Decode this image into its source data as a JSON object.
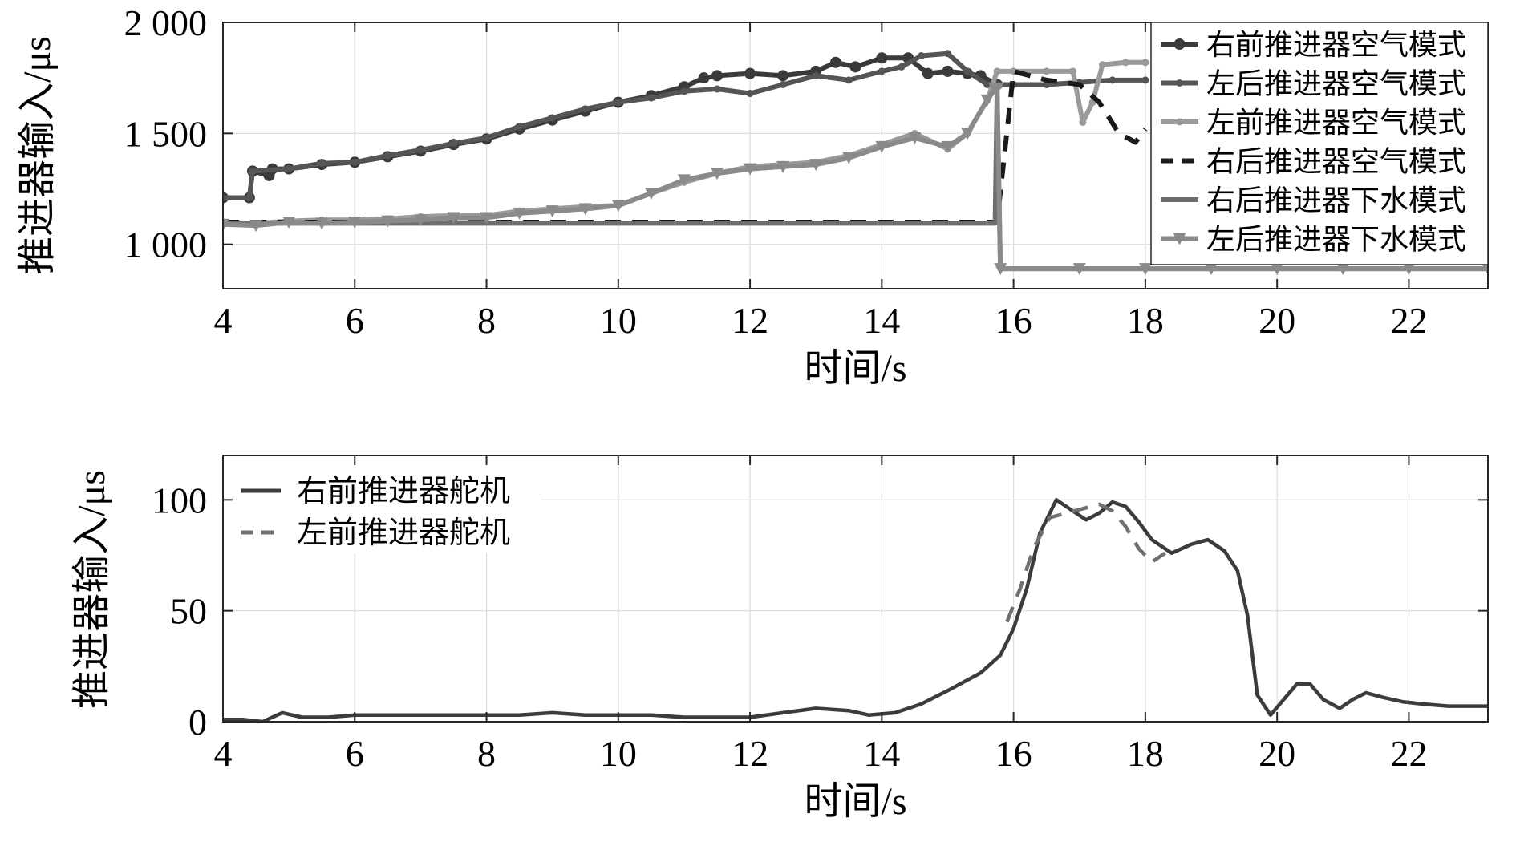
{
  "chart_data": [
    {
      "type": "line",
      "xlabel": "时间/s",
      "ylabel": "推进器输入/μs",
      "xlim": [
        4,
        23.2
      ],
      "ylim": [
        800,
        2000
      ],
      "xticks": [
        4,
        6,
        8,
        10,
        12,
        14,
        16,
        18,
        20,
        22
      ],
      "yticks": [
        1000,
        1500,
        2000
      ],
      "ytick_labels": [
        "1 000",
        "1 500",
        "2 000"
      ],
      "grid": true,
      "legend_position": "top-right",
      "series": [
        {
          "name": "右前推进器空气模式",
          "color": "#3a3a3a",
          "marker": "circle",
          "x": [
            4,
            4.4,
            4.45,
            4.7,
            4.75,
            5,
            5.5,
            6,
            6.5,
            7,
            7.5,
            8,
            8.5,
            9,
            9.5,
            10,
            10.5,
            11,
            11.3,
            11.5,
            12,
            12.5,
            13,
            13.3,
            13.6,
            14,
            14.4,
            14.7,
            15,
            15.3,
            15.5,
            15.75
          ],
          "y": [
            1210,
            1210,
            1330,
            1310,
            1340,
            1340,
            1360,
            1370,
            1395,
            1420,
            1450,
            1475,
            1520,
            1560,
            1600,
            1640,
            1670,
            1710,
            1750,
            1760,
            1770,
            1760,
            1780,
            1820,
            1800,
            1840,
            1840,
            1770,
            1780,
            1770,
            1760,
            1720
          ]
        },
        {
          "name": "左后推进器空气模式",
          "color": "#555555",
          "marker": "dot",
          "x": [
            4,
            4.4,
            4.45,
            5,
            5.5,
            6,
            6.5,
            7,
            7.5,
            8,
            8.5,
            9,
            9.5,
            10,
            10.5,
            11,
            11.5,
            12,
            12.5,
            13,
            13.5,
            14,
            14.3,
            14.6,
            15,
            15.3,
            15.6,
            15.75,
            16,
            16.5,
            17,
            17.5,
            18
          ],
          "y": [
            1210,
            1210,
            1330,
            1340,
            1365,
            1370,
            1400,
            1425,
            1455,
            1480,
            1530,
            1570,
            1610,
            1640,
            1660,
            1690,
            1700,
            1680,
            1720,
            1760,
            1740,
            1780,
            1800,
            1850,
            1860,
            1780,
            1720,
            1720,
            1720,
            1720,
            1730,
            1740,
            1740
          ]
        },
        {
          "name": "左前推进器空气模式",
          "color": "#9a9a9a",
          "marker": "dot",
          "x": [
            4,
            4.5,
            5,
            5.5,
            6,
            6.5,
            7,
            7.5,
            8,
            8.5,
            9,
            9.5,
            10,
            10.5,
            11,
            11.5,
            12,
            12.5,
            13,
            13.5,
            14,
            14.5,
            15,
            15.3,
            15.6,
            15.75,
            16,
            16.5,
            16.9,
            17.05,
            17.2,
            17.35,
            17.7,
            18
          ],
          "y": [
            1100,
            1095,
            1105,
            1110,
            1110,
            1115,
            1125,
            1130,
            1130,
            1150,
            1160,
            1170,
            1175,
            1230,
            1280,
            1320,
            1350,
            1360,
            1370,
            1400,
            1450,
            1500,
            1430,
            1500,
            1650,
            1780,
            1780,
            1780,
            1780,
            1550,
            1640,
            1810,
            1820,
            1820
          ]
        },
        {
          "name": "右后推进器空气模式",
          "color": "#1a1a1a",
          "dashed": true,
          "x": [
            4,
            5,
            6,
            7,
            8,
            9,
            10,
            11,
            12,
            13,
            14,
            15,
            15.75,
            16,
            16.5,
            17,
            17.3,
            17.6,
            17.85,
            18
          ],
          "y": [
            1100,
            1100,
            1100,
            1100,
            1100,
            1100,
            1100,
            1100,
            1100,
            1100,
            1100,
            1100,
            1100,
            1780,
            1740,
            1720,
            1640,
            1500,
            1460,
            1520
          ]
        },
        {
          "name": "右后推进器下水模式",
          "color": "#6e6e6e",
          "x": [
            4,
            6,
            8,
            10,
            12,
            14,
            15.5,
            15.72,
            15.75,
            15.8,
            18,
            20,
            22,
            23.2
          ],
          "y": [
            1095,
            1095,
            1095,
            1095,
            1095,
            1095,
            1095,
            1095,
            1700,
            890,
            890,
            890,
            890,
            890
          ]
        },
        {
          "name": "左后推进器下水模式",
          "color": "#8a8a8a",
          "marker": "triangle-down",
          "x": [
            4,
            4.5,
            5,
            5.5,
            6,
            6.5,
            7,
            7.5,
            8,
            8.5,
            9,
            9.5,
            10,
            10.5,
            11,
            11.5,
            12,
            12.5,
            13,
            13.5,
            14,
            14.5,
            15,
            15.3,
            15.6,
            15.72,
            15.75,
            15.8,
            17,
            18,
            19,
            20,
            21,
            22,
            23.2
          ],
          "y": [
            1090,
            1085,
            1100,
            1095,
            1100,
            1105,
            1110,
            1120,
            1120,
            1140,
            1150,
            1160,
            1175,
            1230,
            1290,
            1320,
            1340,
            1350,
            1360,
            1390,
            1440,
            1480,
            1440,
            1500,
            1650,
            1700,
            1700,
            890,
            890,
            890,
            890,
            890,
            890,
            890,
            890
          ]
        }
      ]
    },
    {
      "type": "line",
      "xlabel": "时间/s",
      "ylabel": "推进器输入/μs",
      "xlim": [
        4,
        23.2
      ],
      "ylim": [
        0,
        120
      ],
      "xticks": [
        4,
        6,
        8,
        10,
        12,
        14,
        16,
        18,
        20,
        22
      ],
      "yticks": [
        0,
        50,
        100
      ],
      "ytick_labels": [
        "0",
        "50",
        "100"
      ],
      "grid": true,
      "legend_position": "top-left",
      "series": [
        {
          "name": "右前推进器舵机",
          "color": "#3c3c3c",
          "x": [
            4,
            4.3,
            4.6,
            4.9,
            5.2,
            5.6,
            6,
            6.5,
            7,
            7.5,
            8,
            8.5,
            9,
            9.5,
            10,
            10.5,
            11,
            11.5,
            12,
            12.5,
            13,
            13.5,
            13.8,
            14.2,
            14.6,
            15,
            15.5,
            15.8,
            16,
            16.2,
            16.4,
            16.65,
            16.9,
            17.1,
            17.3,
            17.5,
            17.7,
            17.9,
            18.1,
            18.4,
            18.7,
            18.95,
            19.2,
            19.4,
            19.55,
            19.7,
            19.9,
            20.1,
            20.3,
            20.5,
            20.7,
            20.95,
            21.15,
            21.35,
            21.6,
            21.9,
            22.2,
            22.6,
            23,
            23.2
          ],
          "y": [
            1,
            1,
            0,
            4,
            2,
            2,
            3,
            3,
            3,
            3,
            3,
            3,
            4,
            3,
            3,
            3,
            2,
            2,
            2,
            4,
            6,
            5,
            3,
            4,
            8,
            14,
            22,
            30,
            42,
            60,
            85,
            100,
            95,
            91,
            94,
            99,
            97,
            90,
            82,
            76,
            80,
            82,
            77,
            68,
            48,
            12,
            3,
            10,
            17,
            17,
            10,
            6,
            10,
            13,
            11,
            9,
            8,
            7,
            7,
            7
          ]
        },
        {
          "name": "左前推进器舵机",
          "color": "#707070",
          "dashed": true,
          "x": [
            15.9,
            16.1,
            16.3,
            16.55,
            16.8,
            17.05,
            17.3,
            17.5,
            17.7,
            17.9,
            18.1,
            18.3
          ],
          "y": [
            45,
            60,
            78,
            92,
            94,
            96,
            98,
            95,
            88,
            78,
            72,
            76
          ]
        }
      ]
    }
  ]
}
